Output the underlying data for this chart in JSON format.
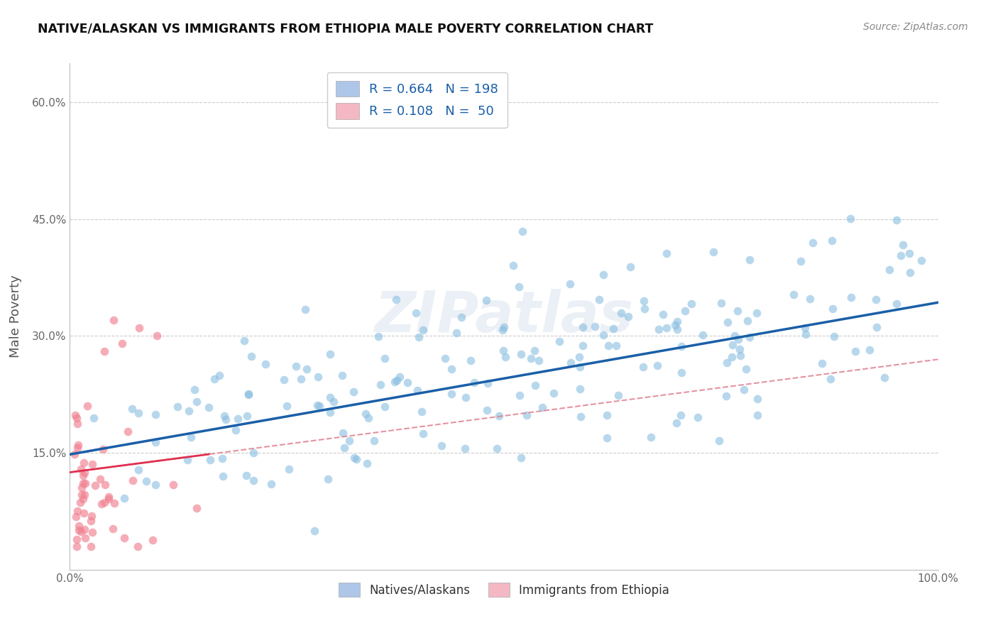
{
  "title": "NATIVE/ALASKAN VS IMMIGRANTS FROM ETHIOPIA MALE POVERTY CORRELATION CHART",
  "source_text": "Source: ZipAtlas.com",
  "ylabel": "Male Poverty",
  "xlim": [
    0,
    1.0
  ],
  "ylim": [
    0,
    0.65
  ],
  "ytick_positions": [
    0.15,
    0.3,
    0.45,
    0.6
  ],
  "ytick_labels": [
    "15.0%",
    "30.0%",
    "45.0%",
    "60.0%"
  ],
  "native_color": "#88bde0",
  "immigrant_color": "#f08090",
  "native_line_color": "#1a5fa8",
  "immigrant_line_solid_color": "#e03050",
  "immigrant_line_dash_color": "#e08090",
  "watermark": "ZIPatlas",
  "background_color": "#ffffff",
  "grid_color": "#cccccc",
  "native_seed": 12345,
  "immigrant_seed": 67890
}
